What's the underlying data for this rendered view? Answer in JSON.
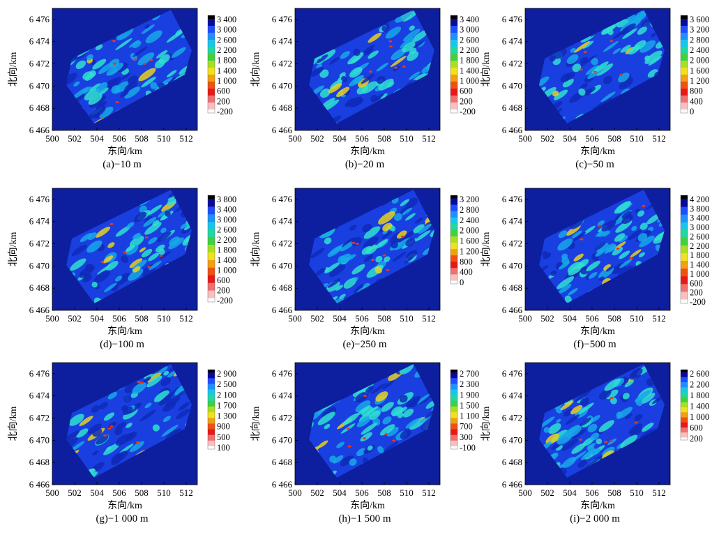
{
  "chart_data": [
    {
      "type": "heatmap",
      "caption": "(a)−10 m",
      "xlabel": "东向/km",
      "ylabel": "北向/km",
      "x_ticks": [
        "500",
        "502",
        "504",
        "506",
        "508",
        "510",
        "512"
      ],
      "y_ticks": [
        "6 476",
        "6 474",
        "6 472",
        "6 470",
        "6 468",
        "6 466"
      ],
      "colorbar": [
        "3 400",
        "3 000",
        "2 600",
        "2 200",
        "1 800",
        "1 400",
        "1 000",
        "600",
        "200",
        "-200"
      ],
      "xlim": [
        500,
        513
      ],
      "ylim": [
        6466,
        6477
      ]
    },
    {
      "type": "heatmap",
      "caption": "(b)−20 m",
      "xlabel": "东向/km",
      "ylabel": "北向/km",
      "x_ticks": [
        "500",
        "502",
        "504",
        "506",
        "508",
        "510",
        "512"
      ],
      "y_ticks": [
        "6 476",
        "6 474",
        "6 472",
        "6 470",
        "6 468",
        "6 466"
      ],
      "colorbar": [
        "3 400",
        "3 000",
        "2 600",
        "2 200",
        "1 800",
        "1 400",
        "1 000",
        "600",
        "200",
        "-200"
      ],
      "xlim": [
        500,
        513
      ],
      "ylim": [
        6466,
        6477
      ]
    },
    {
      "type": "heatmap",
      "caption": "(c)−50 m",
      "xlabel": "东向/km",
      "ylabel": "北向/km",
      "x_ticks": [
        "500",
        "502",
        "504",
        "506",
        "508",
        "510",
        "512"
      ],
      "y_ticks": [
        "6 476",
        "6 474",
        "6 472",
        "6 470",
        "6 468",
        "6 466"
      ],
      "colorbar": [
        "3 600",
        "3 200",
        "2 800",
        "2 400",
        "2 000",
        "1 600",
        "1 200",
        "800",
        "400",
        "0"
      ],
      "xlim": [
        500,
        513
      ],
      "ylim": [
        6466,
        6477
      ]
    },
    {
      "type": "heatmap",
      "caption": "(d)−100 m",
      "xlabel": "东向/km",
      "ylabel": "北向/km",
      "x_ticks": [
        "500",
        "502",
        "504",
        "506",
        "508",
        "510",
        "512"
      ],
      "y_ticks": [
        "6 476",
        "6 474",
        "6 472",
        "6 470",
        "6 468",
        "6 466"
      ],
      "colorbar": [
        "3 800",
        "3 400",
        "3 000",
        "2 600",
        "2 200",
        "1 800",
        "1 400",
        "1 000",
        "600",
        "200",
        "-200"
      ],
      "xlim": [
        500,
        513
      ],
      "ylim": [
        6466,
        6477
      ]
    },
    {
      "type": "heatmap",
      "caption": "(e)−250 m",
      "xlabel": "东向/km",
      "ylabel": "北向/km",
      "x_ticks": [
        "500",
        "502",
        "504",
        "506",
        "508",
        "510",
        "512"
      ],
      "y_ticks": [
        "6 476",
        "6 474",
        "6 472",
        "6 470",
        "6 468",
        "6 466"
      ],
      "colorbar": [
        "3 200",
        "2 800",
        "2 400",
        "2 000",
        "1 600",
        "1 200",
        "800",
        "400",
        "0"
      ],
      "xlim": [
        500,
        513
      ],
      "ylim": [
        6466,
        6477
      ]
    },
    {
      "type": "heatmap",
      "caption": "(f)−500 m",
      "xlabel": "东向/km",
      "ylabel": "北向/km",
      "x_ticks": [
        "500",
        "502",
        "504",
        "506",
        "508",
        "510",
        "512"
      ],
      "y_ticks": [
        "6 476",
        "6 474",
        "6 472",
        "6 470",
        "6 468",
        "6 466"
      ],
      "colorbar": [
        "4 200",
        "3 800",
        "3 400",
        "3 000",
        "2 600",
        "2 200",
        "1 800",
        "1 400",
        "1 000",
        "600",
        "200",
        "-200"
      ],
      "xlim": [
        500,
        513
      ],
      "ylim": [
        6466,
        6477
      ]
    },
    {
      "type": "heatmap",
      "caption": "(g)−1 000 m",
      "xlabel": "东向/km",
      "ylabel": "北向/km",
      "x_ticks": [
        "500",
        "502",
        "504",
        "506",
        "508",
        "510",
        "512"
      ],
      "y_ticks": [
        "6 476",
        "6 474",
        "6 472",
        "6 470",
        "6 468",
        "6 466"
      ],
      "colorbar": [
        "2 900",
        "2 500",
        "2 100",
        "1 700",
        "1 300",
        "900",
        "500",
        "100"
      ],
      "xlim": [
        500,
        513
      ],
      "ylim": [
        6466,
        6477
      ]
    },
    {
      "type": "heatmap",
      "caption": "(h)−1 500 m",
      "xlabel": "东向/km",
      "ylabel": "北向/km",
      "x_ticks": [
        "500",
        "502",
        "504",
        "506",
        "508",
        "510",
        "512"
      ],
      "y_ticks": [
        "6 476",
        "6 474",
        "6 472",
        "6 470",
        "6 468",
        "6 466"
      ],
      "colorbar": [
        "2 700",
        "2 300",
        "1 900",
        "1 500",
        "1 100",
        "700",
        "300",
        "-100"
      ],
      "xlim": [
        500,
        513
      ],
      "ylim": [
        6466,
        6477
      ]
    },
    {
      "type": "heatmap",
      "caption": "(i)−2 000 m",
      "xlabel": "东向/km",
      "ylabel": "北向/km",
      "x_ticks": [
        "500",
        "502",
        "504",
        "506",
        "508",
        "510",
        "512"
      ],
      "y_ticks": [
        "6 476",
        "6 474",
        "6 472",
        "6 470",
        "6 468",
        "6 466"
      ],
      "colorbar": [
        "2 600",
        "2 200",
        "1 800",
        "1 400",
        "1 000",
        "600",
        "200"
      ],
      "xlim": [
        500,
        513
      ],
      "ylim": [
        6466,
        6477
      ]
    }
  ],
  "colors": {
    "background": "#0d1f9e",
    "field_low": "#1a3fe0",
    "field_mid": "#18a8e8",
    "field_high": "#2fe0d0",
    "hot": "#e8d020",
    "hot2": "#e83a1a"
  }
}
